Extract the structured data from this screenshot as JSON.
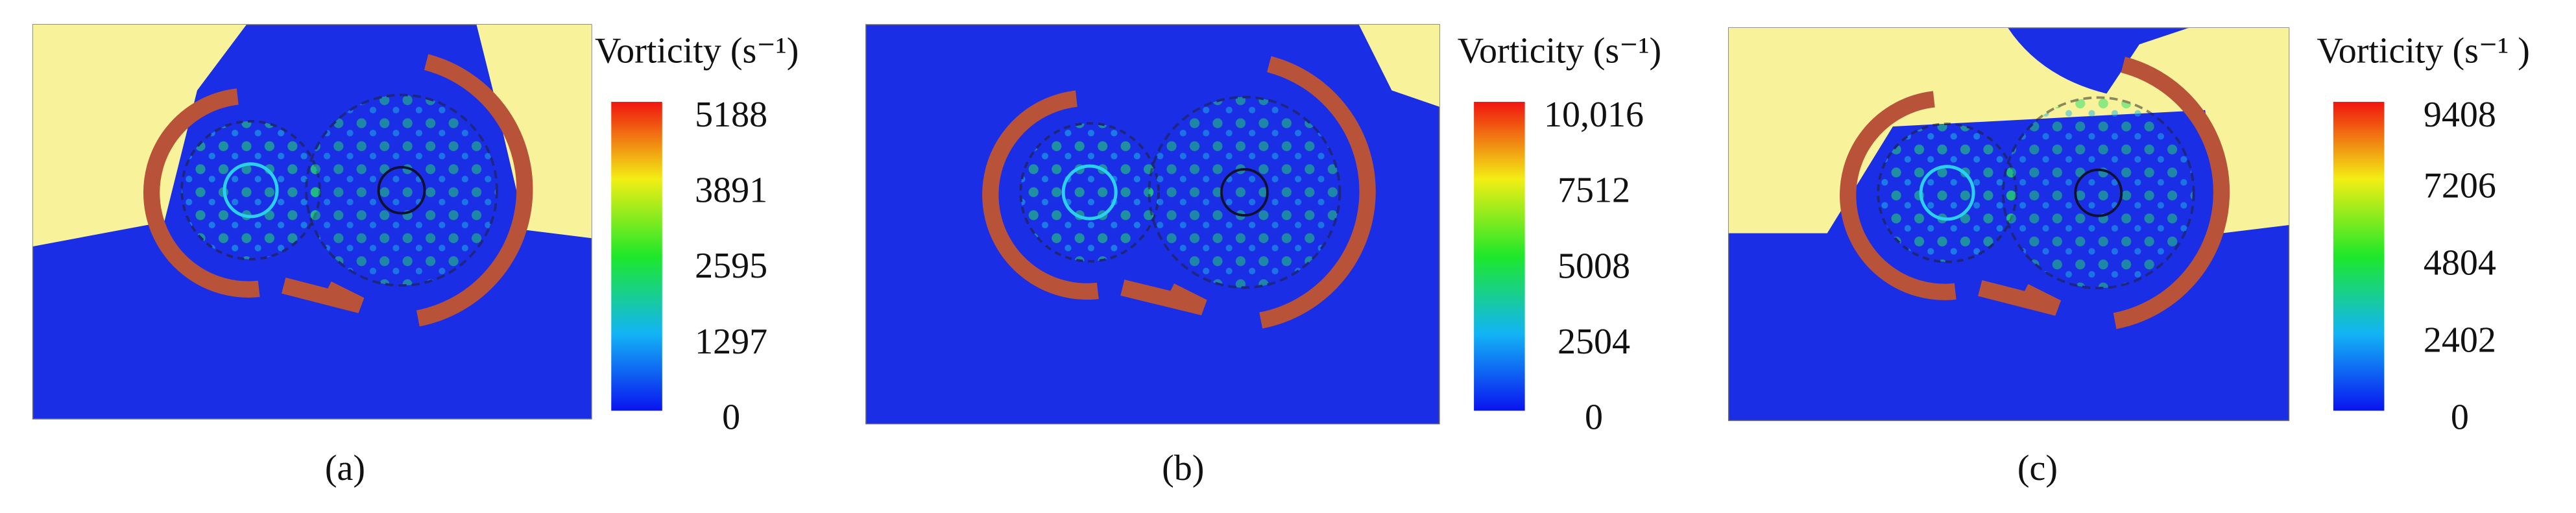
{
  "panels": [
    {
      "label": "(a)",
      "colorbar": {
        "title": "Vorticity (s⁻¹)",
        "ticks": [
          0,
          1297,
          2595,
          3891,
          5188
        ]
      }
    },
    {
      "label": "(b)",
      "colorbar": {
        "title": "Vorticity (s⁻¹)",
        "ticks": [
          0,
          2504,
          5008,
          7512,
          {
            "value": 10016,
            "label": "10,016"
          }
        ]
      }
    },
    {
      "label": "(c)",
      "colorbar": {
        "title": "Vorticity (s⁻¹ )",
        "ticks": [
          0,
          2402,
          4804,
          7206,
          9408
        ]
      }
    }
  ]
}
